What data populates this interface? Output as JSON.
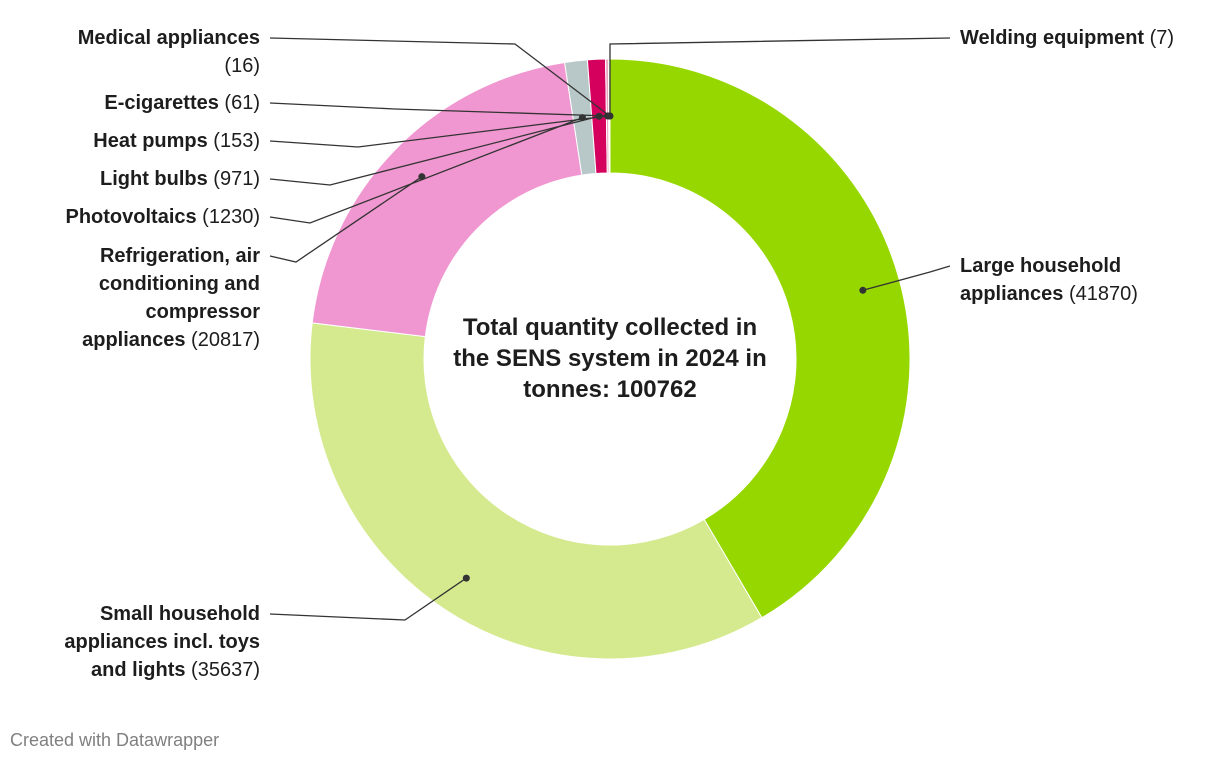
{
  "chart_data": {
    "type": "pie",
    "variant": "donut",
    "center_label": [
      "Total quantity collected in",
      "the SENS system in 2024 in",
      "tonnes: 100762"
    ],
    "total": 100762,
    "slices": [
      {
        "label": "Large household appliances",
        "value": 41870,
        "color": "#97d700",
        "label_lines": [
          [
            "Large household",
            ""
          ],
          [
            "appliances",
            "(41870)"
          ]
        ]
      },
      {
        "label": "Small household appliances incl. toys and lights",
        "value": 35637,
        "color": "#d5ea8f",
        "label_lines": [
          [
            "Small household",
            ""
          ],
          [
            "appliances incl. toys",
            ""
          ],
          [
            "and lights",
            "(35637)"
          ]
        ]
      },
      {
        "label": "Refrigeration, air conditioning and compressor appliances",
        "value": 20817,
        "color": "#f096d0",
        "label_lines": [
          [
            "Refrigeration, air",
            ""
          ],
          [
            "conditioning and",
            ""
          ],
          [
            "compressor",
            ""
          ],
          [
            "appliances",
            "(20817)"
          ]
        ]
      },
      {
        "label": "Photovoltaics",
        "value": 1230,
        "color": "#b8c7c7",
        "label_lines": [
          [
            "Photovoltaics",
            "(1230)"
          ]
        ]
      },
      {
        "label": "Light bulbs",
        "value": 971,
        "color": "#d5005e",
        "label_lines": [
          [
            "Light bulbs",
            "(971)"
          ]
        ]
      },
      {
        "label": "Heat pumps",
        "value": 153,
        "color": "#e8a6c0",
        "label_lines": [
          [
            "Heat pumps",
            "(153)"
          ]
        ]
      },
      {
        "label": "E-cigarettes",
        "value": 61,
        "color": "#7a4a2a",
        "label_lines": [
          [
            "E-cigarettes",
            "(61)"
          ]
        ]
      },
      {
        "label": "Medical appliances",
        "value": 16,
        "color": "#cccccc",
        "label_lines": [
          [
            "Medical appliances",
            ""
          ],
          [
            "",
            "(16)"
          ]
        ]
      },
      {
        "label": "Welding equipment",
        "value": 7,
        "color": "#333333",
        "label_lines": [
          [
            "Welding equipment",
            "(7)"
          ]
        ]
      }
    ]
  },
  "footer": {
    "credit": "Created with Datawrapper"
  }
}
